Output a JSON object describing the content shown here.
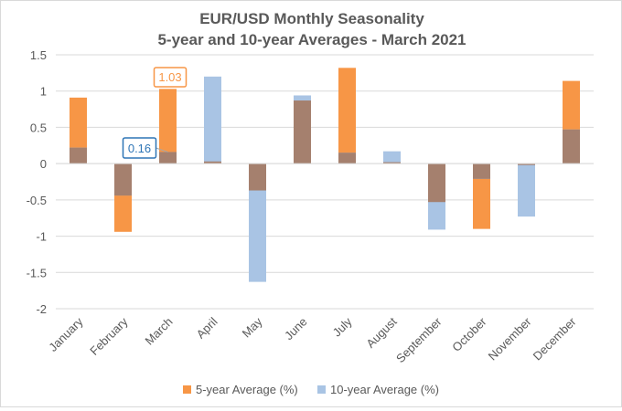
{
  "chart_data": {
    "type": "bar",
    "title": "EUR/USD Monthly Seasonality",
    "subtitle": "5-year and 10-year Averages - March 2021",
    "categories": [
      "January",
      "February",
      "March",
      "April",
      "May",
      "June",
      "July",
      "August",
      "September",
      "October",
      "November",
      "December"
    ],
    "series": [
      {
        "name": "5-year Average (%)",
        "color": "#f79646",
        "values": [
          0.91,
          -0.94,
          1.03,
          0.03,
          -0.37,
          0.87,
          1.32,
          0.02,
          -0.53,
          -0.9,
          -0.02,
          1.14
        ]
      },
      {
        "name": "10-year Average (%)",
        "color": "#a9c4e4",
        "values": [
          0.22,
          -0.44,
          0.16,
          1.2,
          -1.63,
          0.94,
          0.15,
          0.17,
          -0.91,
          -0.21,
          -0.73,
          0.47
        ]
      }
    ],
    "overlap_color": "#a5806e",
    "ylim": [
      -2,
      1.5
    ],
    "yticks": [
      "1.5",
      "1",
      "0.5",
      "0",
      "-0.5",
      "-1",
      "-1.5",
      "-2"
    ],
    "grid": true,
    "legend_position": "bottom",
    "annotations": [
      {
        "label": "1.03",
        "category": "March",
        "series": "5-year Average (%)",
        "border_color": "#f79646",
        "text_color": "#f79646"
      },
      {
        "label": "0.16",
        "category": "March",
        "series": "10-year Average (%)",
        "border_color": "#2e75b6",
        "text_color": "#2e75b6"
      }
    ]
  }
}
